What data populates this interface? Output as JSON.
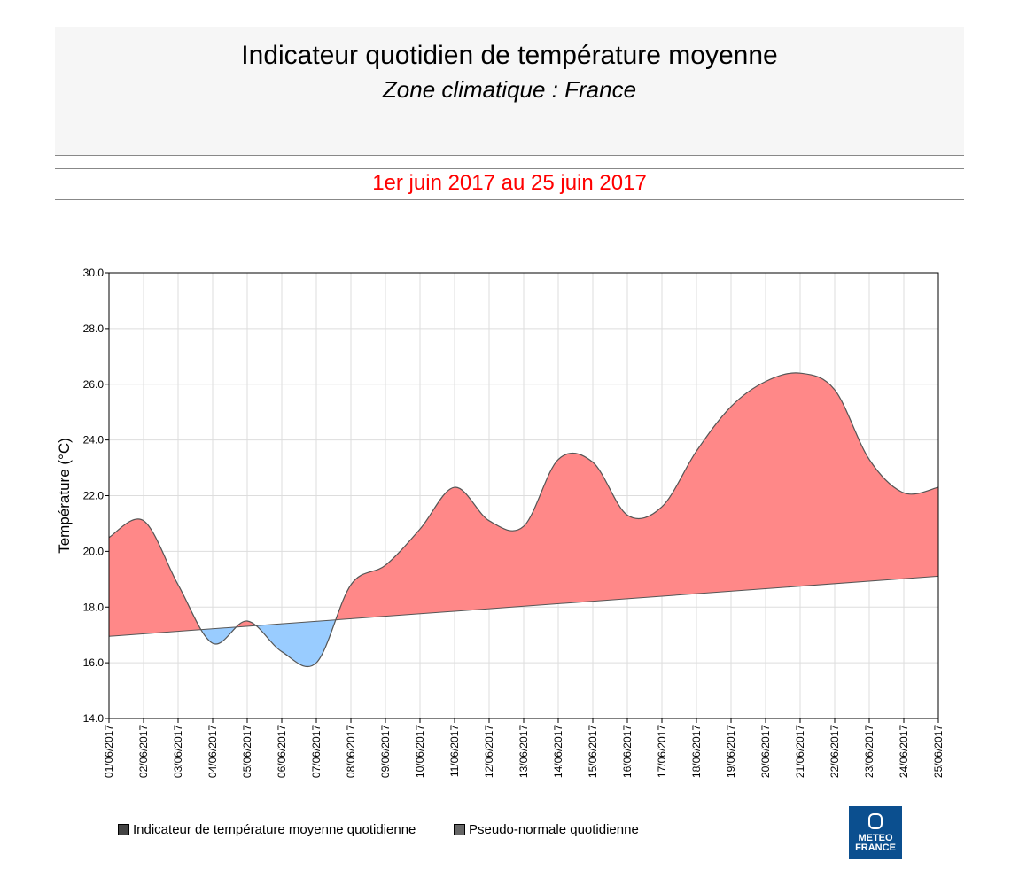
{
  "header": {
    "title": "Indicateur quotidien de température moyenne",
    "subtitle": "Zone climatique : France",
    "period": "1er juin 2017 au 25 juin 2017"
  },
  "chart_data": {
    "type": "area",
    "ylabel": "Température (°C)",
    "ylim": [
      14,
      30
    ],
    "yticks": [
      "14.0",
      "16.0",
      "18.0",
      "20.0",
      "22.0",
      "24.0",
      "26.0",
      "28.0",
      "30.0"
    ],
    "grid": true,
    "legend_placement": "bottom",
    "x": [
      "01/06/2017",
      "02/06/2017",
      "03/06/2017",
      "04/06/2017",
      "05/06/2017",
      "06/06/2017",
      "07/06/2017",
      "08/06/2017",
      "09/06/2017",
      "10/06/2017",
      "11/06/2017",
      "12/06/2017",
      "13/06/2017",
      "14/06/2017",
      "15/06/2017",
      "16/06/2017",
      "17/06/2017",
      "18/06/2017",
      "19/06/2017",
      "20/06/2017",
      "21/06/2017",
      "22/06/2017",
      "23/06/2017",
      "24/06/2017",
      "25/06/2017"
    ],
    "series": [
      {
        "name": "Indicateur de température moyenne quotidienne",
        "values": [
          20.5,
          21.1,
          18.8,
          16.7,
          17.5,
          16.4,
          16.0,
          18.8,
          19.5,
          20.8,
          22.3,
          21.1,
          20.9,
          23.3,
          23.2,
          21.3,
          21.6,
          23.6,
          25.2,
          26.1,
          26.4,
          25.8,
          23.3,
          22.1,
          22.3
        ]
      },
      {
        "name": "Pseudo-normale quotidienne",
        "values": [
          16.95,
          17.04,
          17.13,
          17.22,
          17.31,
          17.4,
          17.49,
          17.58,
          17.67,
          17.76,
          17.85,
          17.94,
          18.03,
          18.12,
          18.21,
          18.3,
          18.39,
          18.48,
          18.57,
          18.66,
          18.75,
          18.84,
          18.93,
          19.02,
          19.11
        ]
      }
    ],
    "colors": {
      "above": "#ff8888",
      "below": "#99ccff",
      "line": "#555555"
    }
  },
  "logo": {
    "line1": "METEO",
    "line2": "FRANCE"
  }
}
